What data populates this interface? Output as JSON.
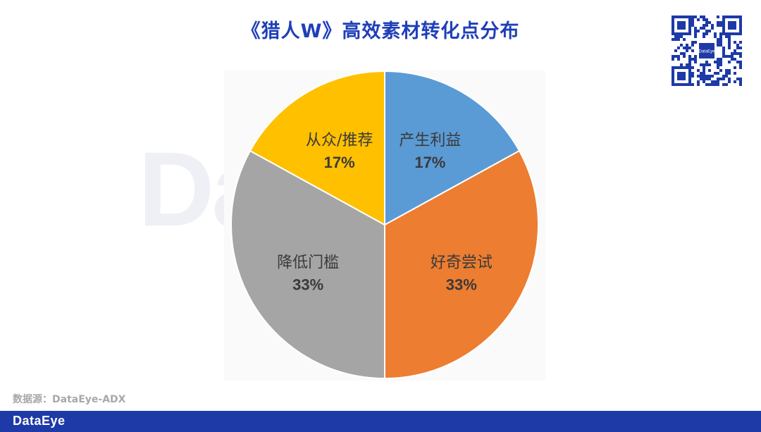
{
  "title": "《猎人W》高效素材转化点分布",
  "watermark": "DataEye",
  "source": "数据源：DataEye-ADX",
  "footer_logo": "DataEye",
  "qr_logo": "DataEye",
  "chart_data": {
    "type": "pie",
    "title": "《猎人W》高效素材转化点分布",
    "slices": [
      {
        "label": "产生利益",
        "value": 17,
        "display": "17%",
        "color": "#5b9bd5"
      },
      {
        "label": "好奇尝试",
        "value": 33,
        "display": "33%",
        "color": "#ed7d31"
      },
      {
        "label": "降低门槛",
        "value": 33,
        "display": "33%",
        "color": "#a5a5a5"
      },
      {
        "label": "从众/推荐",
        "value": 17,
        "display": "17%",
        "color": "#ffc000"
      }
    ]
  }
}
